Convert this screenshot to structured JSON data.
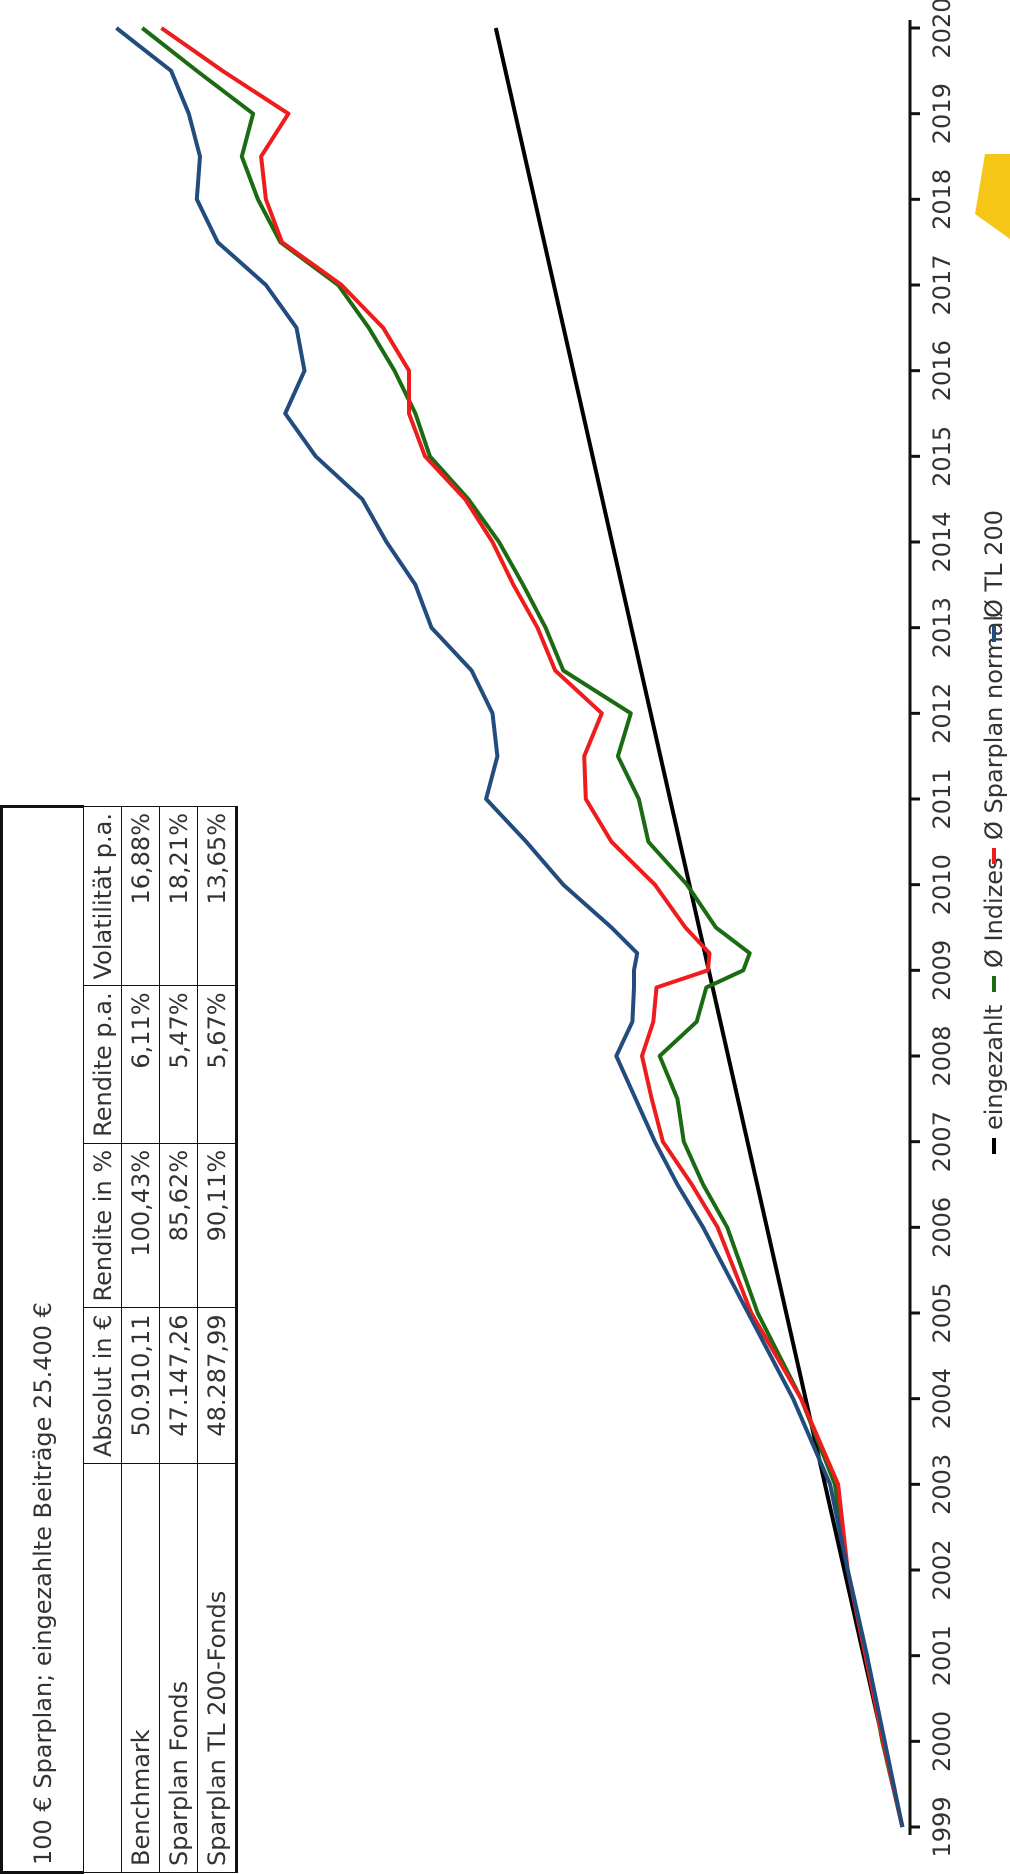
{
  "table": {
    "caption": "100 € Sparplan; eingezahlte Beiträge 25.400 €",
    "headers": [
      "",
      "Absolut in €",
      "Rendite in %",
      "Rendite p.a.",
      "Volatilität p.a."
    ],
    "rows": [
      {
        "label": "Benchmark",
        "absolute": "50.910,11",
        "return": "100,43%",
        "return_pa": "6,11%",
        "volatility": "16,88%"
      },
      {
        "label": "Sparplan Fonds",
        "absolute": "47.147,26",
        "return": "85,62%",
        "return_pa": "5,47%",
        "volatility": "18,21%"
      },
      {
        "label": "Sparplan TL 200-Fonds",
        "absolute": "48.287,99",
        "return": "90,11%",
        "return_pa": "5,67%",
        "volatility": "13,65%"
      }
    ]
  },
  "chart_data": {
    "type": "line",
    "x_ticks": [
      "1999",
      "2000",
      "2001",
      "2002",
      "2003",
      "2004",
      "2005",
      "2006",
      "2007",
      "2008",
      "2009",
      "2010",
      "2011",
      "2012",
      "2013",
      "2014",
      "2015",
      "2016",
      "2017",
      "2018",
      "2019",
      "2020"
    ],
    "xlim": [
      1999,
      2020
    ],
    "ylim": [
      0,
      55000
    ],
    "grid": false,
    "legend_position": "bottom",
    "series": [
      {
        "name": "eingezahlt",
        "color": "#000000",
        "points": [
          [
            1999,
            100
          ],
          [
            2020,
            25400
          ]
        ]
      },
      {
        "name": "Ø Indizes",
        "color": "#1a6b12",
        "points": [
          [
            1999,
            100
          ],
          [
            2000,
            1350
          ],
          [
            2001,
            2300
          ],
          [
            2002,
            3500
          ],
          [
            2003,
            4300
          ],
          [
            2004,
            6400
          ],
          [
            2005,
            9100
          ],
          [
            2006,
            11000
          ],
          [
            2006.5,
            12500
          ],
          [
            2007,
            13700
          ],
          [
            2007.5,
            14100
          ],
          [
            2008,
            15200
          ],
          [
            2008.4,
            12900
          ],
          [
            2008.8,
            12300
          ],
          [
            2009.0,
            10000
          ],
          [
            2009.2,
            9600
          ],
          [
            2009.5,
            11700
          ],
          [
            2010,
            13500
          ],
          [
            2010.5,
            15900
          ],
          [
            2011,
            16500
          ],
          [
            2011.5,
            17800
          ],
          [
            2012,
            17000
          ],
          [
            2012.5,
            21200
          ],
          [
            2013,
            22300
          ],
          [
            2013.5,
            23700
          ],
          [
            2014,
            25200
          ],
          [
            2014.5,
            27100
          ],
          [
            2015,
            29500
          ],
          [
            2015.5,
            30400
          ],
          [
            2016,
            31700
          ],
          [
            2016.5,
            33300
          ],
          [
            2017,
            35200
          ],
          [
            2017.5,
            38800
          ],
          [
            2018,
            40200
          ],
          [
            2018.5,
            41200
          ],
          [
            2019,
            40500
          ],
          [
            2019.5,
            44000
          ],
          [
            2020,
            47400
          ]
        ]
      },
      {
        "name": "Ø Sparplan normal",
        "color": "#ee1c1c",
        "points": [
          [
            1999,
            100
          ],
          [
            2000,
            1300
          ],
          [
            2001,
            2400
          ],
          [
            2002,
            3500
          ],
          [
            2003,
            4100
          ],
          [
            2004,
            6400
          ],
          [
            2005,
            9500
          ],
          [
            2006,
            11600
          ],
          [
            2006.5,
            13200
          ],
          [
            2007,
            15000
          ],
          [
            2007.5,
            15700
          ],
          [
            2008,
            16300
          ],
          [
            2008.4,
            15600
          ],
          [
            2008.8,
            15400
          ],
          [
            2009.0,
            12200
          ],
          [
            2009.2,
            12100
          ],
          [
            2009.5,
            13600
          ],
          [
            2010,
            15500
          ],
          [
            2010.5,
            18200
          ],
          [
            2011,
            19800
          ],
          [
            2011.5,
            19900
          ],
          [
            2012,
            18800
          ],
          [
            2012.5,
            21700
          ],
          [
            2013,
            22800
          ],
          [
            2013.5,
            24300
          ],
          [
            2014,
            25600
          ],
          [
            2014.5,
            27300
          ],
          [
            2015,
            29800
          ],
          [
            2015.5,
            30800
          ],
          [
            2016,
            30800
          ],
          [
            2016.5,
            32400
          ],
          [
            2017,
            35000
          ],
          [
            2017.5,
            38700
          ],
          [
            2018,
            39700
          ],
          [
            2018.5,
            40000
          ],
          [
            2019,
            38300
          ],
          [
            2019.5,
            42400
          ],
          [
            2020,
            46200
          ]
        ]
      },
      {
        "name": "Ø TL 200",
        "color": "#224b7e",
        "points": [
          [
            1999,
            100
          ],
          [
            2000,
            1200
          ],
          [
            2001,
            2300
          ],
          [
            2002,
            3500
          ],
          [
            2003,
            4600
          ],
          [
            2004,
            6900
          ],
          [
            2005,
            9700
          ],
          [
            2006,
            12500
          ],
          [
            2006.5,
            14100
          ],
          [
            2007,
            15500
          ],
          [
            2007.5,
            16700
          ],
          [
            2008,
            17900
          ],
          [
            2008.4,
            16900
          ],
          [
            2008.8,
            16800
          ],
          [
            2009.0,
            16800
          ],
          [
            2009.2,
            16600
          ],
          [
            2009.5,
            18200
          ],
          [
            2010,
            21200
          ],
          [
            2010.5,
            23500
          ],
          [
            2011,
            26000
          ],
          [
            2011.5,
            25300
          ],
          [
            2012,
            25600
          ],
          [
            2012.5,
            26900
          ],
          [
            2013,
            29400
          ],
          [
            2013.5,
            30400
          ],
          [
            2014,
            32200
          ],
          [
            2014.5,
            33700
          ],
          [
            2015,
            36600
          ],
          [
            2015.5,
            38500
          ],
          [
            2016,
            37300
          ],
          [
            2016.5,
            37800
          ],
          [
            2017,
            39700
          ],
          [
            2017.5,
            42700
          ],
          [
            2018,
            44000
          ],
          [
            2018.5,
            43800
          ],
          [
            2019,
            44500
          ],
          [
            2019.5,
            45600
          ],
          [
            2020,
            49000
          ]
        ]
      }
    ]
  },
  "decor": {
    "accent_color": "#f5c518"
  }
}
